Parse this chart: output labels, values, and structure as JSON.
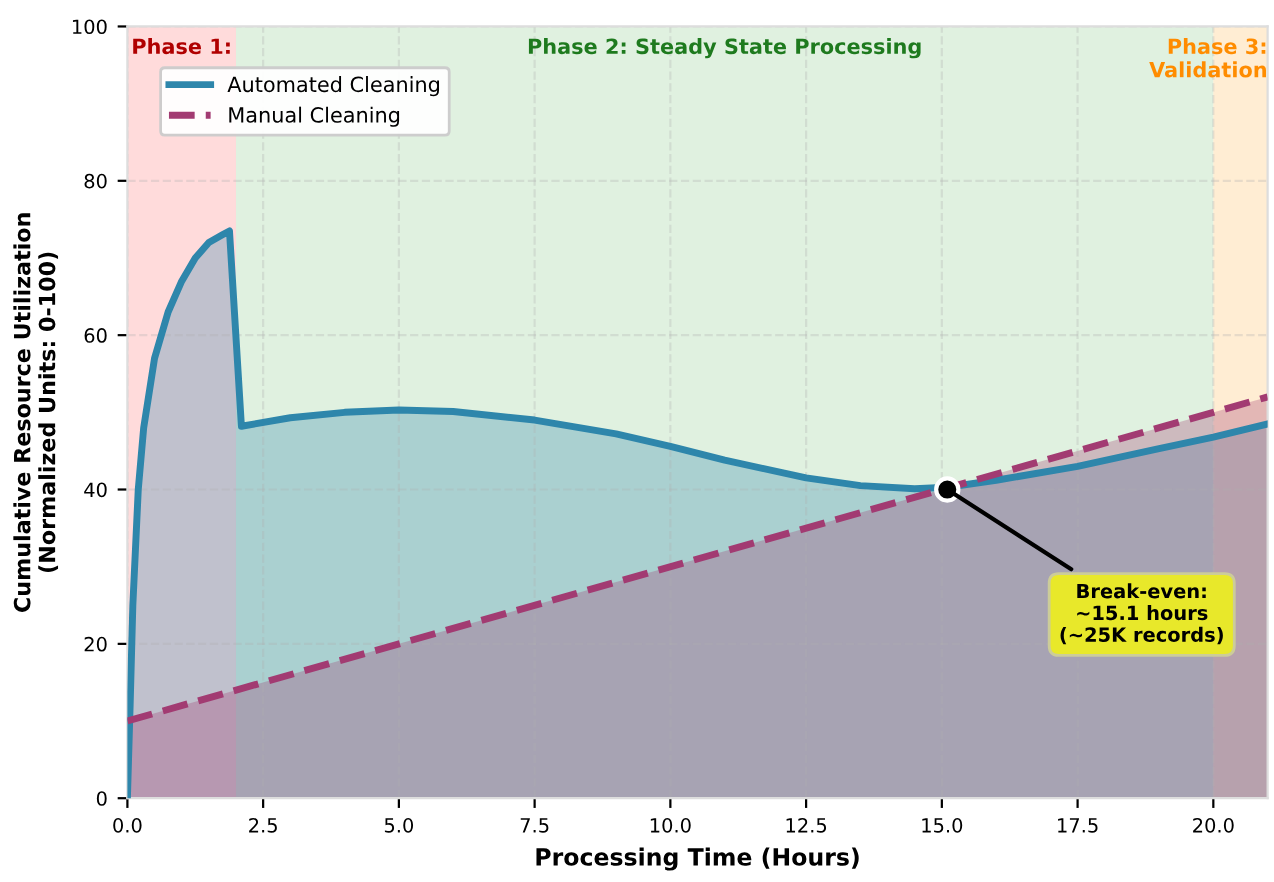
{
  "chart_data": {
    "type": "area",
    "xlabel": "Processing Time (Hours)",
    "ylabel": "Cumulative Resource Utilization\n(Normalized Units: 0-100)",
    "series": [
      {
        "name": "Automated Cleaning",
        "color": "#2e86ab",
        "line_style": "solid",
        "x": [
          0,
          0.05,
          0.1,
          0.2,
          0.3,
          0.5,
          0.75,
          1.0,
          1.25,
          1.5,
          1.75,
          1.88,
          2.1,
          3.0,
          4.0,
          5.0,
          6.0,
          7.5,
          9.0,
          10.0,
          11.0,
          12.5,
          13.5,
          14.5,
          15.1,
          16.0,
          17.5,
          19.0,
          20.0,
          21.0
        ],
        "values": [
          0,
          12,
          25,
          40,
          48,
          57,
          63,
          67,
          70,
          72,
          73,
          73.5,
          48.2,
          49.3,
          50,
          50.3,
          50.1,
          49,
          47.2,
          45.6,
          43.8,
          41.5,
          40.5,
          40.1,
          40.3,
          41.2,
          43,
          45.3,
          46.8,
          48.5
        ]
      },
      {
        "name": "Manual Cleaning",
        "color": "#a23b72",
        "line_style": "dashed",
        "x": [
          0,
          21
        ],
        "values": [
          10,
          52
        ]
      }
    ],
    "xlim": [
      0,
      21
    ],
    "ylim": [
      0,
      100
    ],
    "xticks": [
      {
        "value": 0,
        "label": "0.0"
      },
      2.5,
      {
        "value": 5,
        "label": "5.0"
      },
      7.5,
      {
        "value": 10,
        "label": "10.0"
      },
      12.5,
      {
        "value": 15,
        "label": "15.0"
      },
      17.5,
      {
        "value": 20,
        "label": "20.0"
      }
    ],
    "yticks": [
      0,
      20,
      40,
      60,
      80,
      100
    ],
    "bands": [
      {
        "axis": "x",
        "from": 0,
        "to": 2,
        "label": "Phase 1:",
        "color": "#ff9999"
      },
      {
        "axis": "x",
        "from": 2,
        "to": 20,
        "label": "Phase 2: Steady State Processing",
        "color": "#a5d6a7"
      },
      {
        "axis": "x",
        "from": 20,
        "to": 21,
        "label": "Phase 3:\nValidation",
        "color": "#ffcc80"
      }
    ],
    "annotations": [
      {
        "text": "Break-even:\n~15.1 hours\n(~25K records)",
        "x": 15.1,
        "y": 40
      }
    ],
    "grid": true,
    "legend": "top left"
  }
}
